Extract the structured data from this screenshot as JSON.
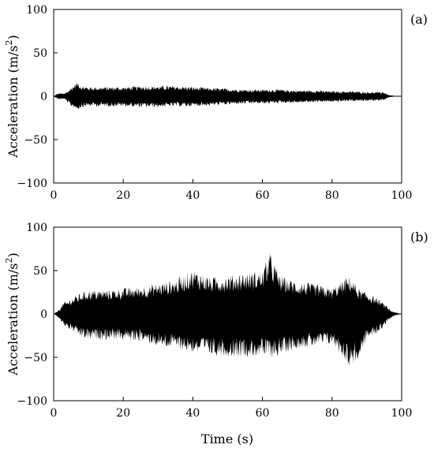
{
  "chart_data": [
    {
      "type": "line",
      "panel_label": "(a)",
      "ylabel_main": "Acceleration (m/s",
      "ylabel_sup": "2",
      "ylabel_close": ")",
      "xlim": [
        0,
        100
      ],
      "ylim": [
        -100,
        100
      ],
      "x_ticks": [
        0,
        20,
        40,
        60,
        80,
        100
      ],
      "y_ticks": [
        -100,
        -50,
        0,
        50,
        100
      ],
      "x_tick_labels": [
        "0",
        "20",
        "40",
        "60",
        "80",
        "100"
      ],
      "y_tick_labels": [
        "−100",
        "−50",
        "0",
        "50",
        "100"
      ],
      "series": [
        {
          "color": "#000000",
          "x": [
            0,
            1,
            2,
            3,
            4,
            5,
            6,
            7,
            8,
            10,
            15,
            20,
            25,
            30,
            35,
            40,
            45,
            50,
            55,
            60,
            65,
            70,
            75,
            80,
            85,
            90,
            93,
            95,
            96,
            97,
            98,
            99,
            100
          ],
          "upper": [
            0,
            3,
            4,
            3,
            6,
            10,
            14,
            17,
            12,
            11,
            11,
            11,
            12,
            12,
            12,
            11,
            10,
            9,
            8,
            8,
            8,
            7,
            7,
            6,
            6,
            5,
            5,
            5,
            2,
            1,
            0.5,
            0.3,
            0
          ],
          "lower": [
            0,
            -3,
            -4,
            -3,
            -8,
            -12,
            -14,
            -16,
            -13,
            -12,
            -12,
            -12,
            -13,
            -13,
            -12,
            -12,
            -11,
            -10,
            -9,
            -9,
            -8,
            -8,
            -7,
            -7,
            -6,
            -6,
            -5,
            -5,
            -2,
            -1,
            -0.5,
            -0.3,
            0
          ]
        }
      ]
    },
    {
      "type": "line",
      "panel_label": "(b)",
      "ylabel_main": "Acceleration (m/s",
      "ylabel_sup": "2",
      "ylabel_close": ")",
      "xlabel": "Time (s)",
      "xlim": [
        0,
        100
      ],
      "ylim": [
        -100,
        100
      ],
      "x_ticks": [
        0,
        20,
        40,
        60,
        80,
        100
      ],
      "y_ticks": [
        -100,
        -50,
        0,
        50,
        100
      ],
      "x_tick_labels": [
        "0",
        "20",
        "40",
        "60",
        "80",
        "100"
      ],
      "y_tick_labels": [
        "−100",
        "−50",
        "0",
        "50",
        "100"
      ],
      "series": [
        {
          "color": "#000000",
          "x": [
            0,
            1,
            2,
            3,
            4,
            5,
            6,
            8,
            10,
            15,
            20,
            25,
            30,
            35,
            40,
            45,
            50,
            55,
            60,
            62,
            65,
            70,
            75,
            80,
            84,
            85,
            88,
            90,
            93,
            95,
            96,
            97,
            98,
            99,
            100
          ],
          "upper": [
            0,
            3,
            8,
            14,
            15,
            18,
            20,
            25,
            28,
            28,
            30,
            32,
            36,
            40,
            52,
            43,
            45,
            48,
            50,
            72,
            45,
            38,
            35,
            30,
            42,
            45,
            28,
            25,
            18,
            12,
            8,
            4,
            2,
            1,
            0
          ],
          "lower": [
            0,
            -3,
            -8,
            -14,
            -16,
            -20,
            -22,
            -28,
            -30,
            -30,
            -30,
            -32,
            -38,
            -40,
            -45,
            -48,
            -50,
            -50,
            -50,
            -52,
            -48,
            -40,
            -38,
            -35,
            -55,
            -63,
            -52,
            -30,
            -22,
            -15,
            -8,
            -4,
            -2,
            -1,
            0
          ]
        }
      ]
    }
  ]
}
